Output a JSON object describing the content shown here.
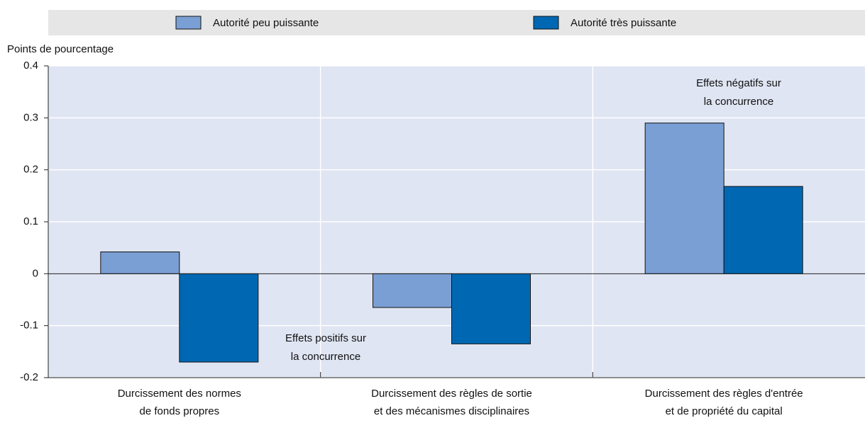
{
  "chart_data": {
    "type": "bar",
    "y_label": "Points de pourcentage",
    "categories": [
      [
        "Durcissement des normes",
        "de fonds propres"
      ],
      [
        "Durcissement des règles de sortie",
        "et des mécanismes disciplinaires"
      ],
      [
        "Durcissement des règles d'entrée",
        "et de propriété du capital"
      ]
    ],
    "series": [
      {
        "name": "Autorité peu puissante",
        "color": "#7a9fd4",
        "values": [
          0.042,
          -0.065,
          0.29
        ]
      },
      {
        "name": "Autorité très puissante",
        "color": "#0068b3",
        "values": [
          -0.17,
          -0.135,
          0.168
        ]
      }
    ],
    "annotations": [
      [
        "Effets positifs sur",
        "la concurrence"
      ],
      [
        "Effets négatifs sur",
        "la concurrence"
      ]
    ],
    "ylim": [
      -0.2,
      0.4
    ],
    "yticks": [
      -0.2,
      -0.1,
      0,
      0.1,
      0.2,
      0.3,
      0.4
    ],
    "grid": true,
    "legend": "top"
  }
}
